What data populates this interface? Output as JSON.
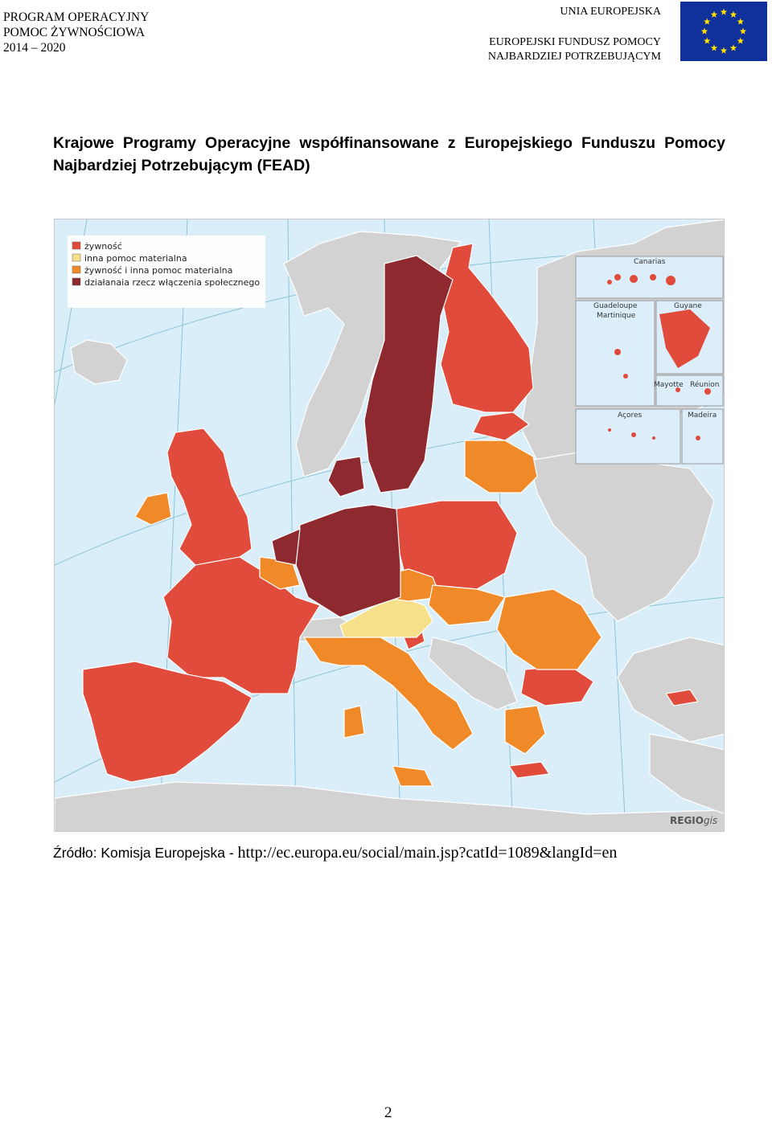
{
  "header": {
    "program_lines": [
      "PROGRAM OPERACYJNY",
      "POMOC ŻYWNOŚCIOWA",
      "2014 – 2020"
    ],
    "union": "UNIA EUROPEJSKA",
    "fund_lines": [
      "EUROPEJSKI FUNDUSZ POMOCY",
      "NAJBARDZIEJ POTRZEBUJĄCYM"
    ]
  },
  "title": "Krajowe Programy Operacyjne współfinansowane z Europejskiego Funduszu Pomocy Najbardziej Potrzebującym (FEAD)",
  "map": {
    "legend": [
      {
        "label": "żywność",
        "color": "#e14b3b"
      },
      {
        "label": "inna pomoc materialna",
        "color": "#f6e08a"
      },
      {
        "label": "żywność i inna pomoc materialna",
        "color": "#f08a28"
      },
      {
        "label": "działanaia rzecz włączenia społecznego",
        "color": "#8e2a2f"
      }
    ],
    "insets": [
      "Canarias",
      "Guadeloupe",
      "Martinique",
      "Guyane",
      "Mayotte",
      "Réunion",
      "Açores",
      "Madeira"
    ],
    "credit_a": "REGIO",
    "credit_b": "gis",
    "colors": {
      "sea": "#d9eef8",
      "non_eu": "#d2d2d2",
      "border": "#ffffff",
      "grid": "#8bc4d6"
    }
  },
  "source": {
    "label": "Źródło: Komisja Europejska - ",
    "url": "http://ec.europa.eu/social/main.jsp?catId=1089&langId=en"
  },
  "page_number": "2"
}
